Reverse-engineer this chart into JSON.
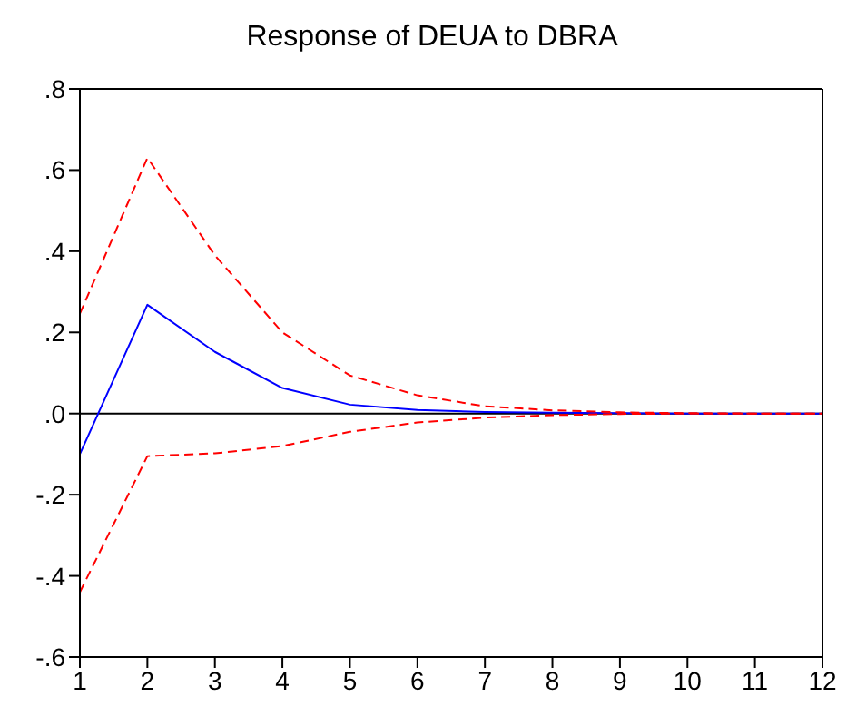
{
  "chart_data": {
    "type": "line",
    "title": "Response of DEUA to DBRA",
    "x": [
      1,
      2,
      3,
      4,
      5,
      6,
      7,
      8,
      9,
      10,
      11,
      12
    ],
    "series": [
      {
        "color": "#0000ff",
        "line_style": "solid",
        "values": [
          -0.1,
          0.268,
          0.152,
          0.063,
          0.022,
          0.009,
          0.004,
          0.002,
          0.001,
          0,
          0,
          0
        ]
      },
      {
        "color": "#ff0000",
        "line_style": "dashed",
        "values": [
          0.246,
          0.63,
          0.39,
          0.2,
          0.094,
          0.045,
          0.018,
          0.008,
          0.003,
          0.001,
          0,
          0
        ]
      },
      {
        "color": "#ff0000",
        "line_style": "dashed",
        "values": [
          -0.44,
          -0.105,
          -0.098,
          -0.08,
          -0.045,
          -0.022,
          -0.01,
          -0.004,
          -0.001,
          0,
          0,
          0
        ]
      }
    ],
    "xlim": [
      1,
      12
    ],
    "xticks": [
      1,
      2,
      3,
      4,
      5,
      6,
      7,
      8,
      9,
      10,
      11,
      12
    ],
    "ylim": [
      -0.6,
      0.8
    ],
    "yticks": [
      {
        "value": -0.6,
        "label": "-.6"
      },
      {
        "value": -0.4,
        "label": "-.4"
      },
      {
        "value": -0.2,
        "label": "-.2"
      },
      {
        "value": 0,
        "label": ".0"
      },
      {
        "value": 0.2,
        "label": ".2"
      },
      {
        "value": 0.4,
        "label": ".4"
      },
      {
        "value": 0.6,
        "label": ".6"
      },
      {
        "value": 0.8,
        "label": ".8"
      }
    ],
    "ref_lines": [
      {
        "axis": "y",
        "value": 0,
        "color": "#000000"
      }
    ],
    "grid": false,
    "legend": false,
    "marker": "none"
  }
}
